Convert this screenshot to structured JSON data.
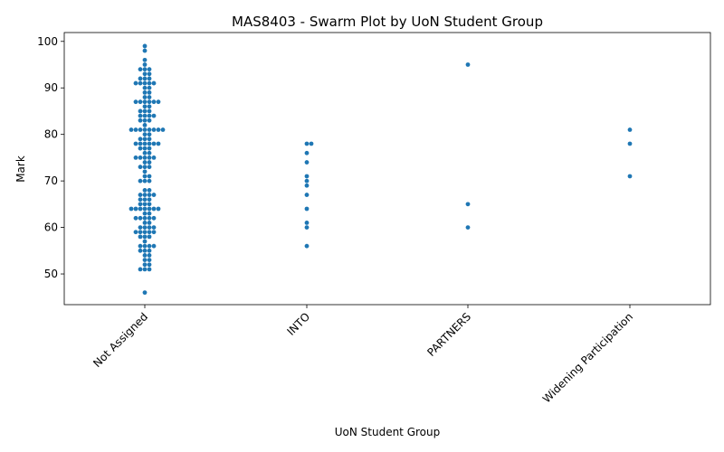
{
  "chart_data": {
    "type": "scatter",
    "subtype": "swarm",
    "title": "MAS8403 - Swarm Plot by UoN Student Group",
    "xlabel": "UoN Student Group",
    "ylabel": "Mark",
    "categories": [
      "Not Assigned",
      "INTO",
      "PARTNERS",
      "Widening Participation"
    ],
    "ylim": [
      43.4,
      101.9
    ],
    "yticks": [
      "50",
      "60",
      "70",
      "80",
      "90",
      "100"
    ],
    "grid": false,
    "point_color": "#1f77b4",
    "groups": [
      {
        "category": "Not Assigned",
        "values": [
          99,
          98,
          96,
          95,
          94,
          94,
          94,
          93,
          93,
          92,
          92,
          92,
          91,
          91,
          91,
          91,
          91,
          90,
          90,
          89,
          89,
          88,
          88,
          87,
          87,
          87,
          87,
          87,
          87,
          86,
          86,
          85,
          85,
          85,
          84,
          84,
          84,
          84,
          83,
          83,
          83,
          82,
          81,
          81,
          81,
          81,
          81,
          81,
          81,
          81,
          80,
          80,
          79,
          79,
          79,
          78,
          78,
          78,
          78,
          78,
          78,
          77,
          77,
          77,
          76,
          76,
          75,
          75,
          75,
          75,
          75,
          74,
          74,
          73,
          73,
          73,
          72,
          71,
          71,
          70,
          70,
          70,
          68,
          68,
          67,
          67,
          67,
          67,
          66,
          66,
          66,
          65,
          65,
          65,
          64,
          64,
          64,
          64,
          64,
          64,
          64,
          63,
          63,
          62,
          62,
          62,
          62,
          62,
          61,
          61,
          60,
          60,
          60,
          60,
          59,
          59,
          59,
          59,
          59,
          58,
          58,
          58,
          57,
          56,
          56,
          56,
          56,
          55,
          55,
          55,
          54,
          54,
          53,
          53,
          52,
          52,
          51,
          51,
          51,
          46
        ]
      },
      {
        "category": "INTO",
        "values": [
          78,
          78,
          76,
          74,
          71,
          70,
          69,
          67,
          64,
          61,
          60,
          56
        ]
      },
      {
        "category": "PARTNERS",
        "values": [
          95,
          65,
          60
        ]
      },
      {
        "category": "Widening Participation",
        "values": [
          81,
          78,
          71
        ]
      }
    ]
  }
}
